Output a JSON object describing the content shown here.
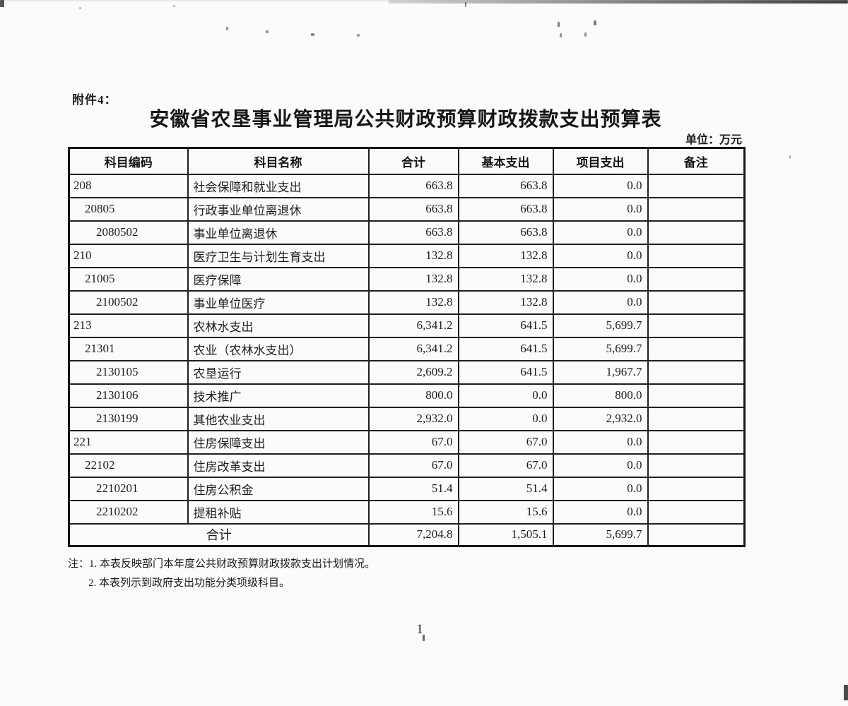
{
  "page": {
    "attachment_label": "附件4：",
    "title": "安徽省农垦事业管理局公共财政预算财政拨款支出预算表",
    "unit_label": "单位：万元",
    "page_number": "1",
    "paper_color": "#fbfbfa",
    "ink_color": "#1d1d1d"
  },
  "table": {
    "columns": [
      "科目编码",
      "科目名称",
      "合计",
      "基本支出",
      "项目支出",
      "备注"
    ],
    "rows": [
      {
        "code": "208",
        "indent": 0,
        "name": "社会保障和就业支出",
        "total": "663.8",
        "basic": "663.8",
        "project": "0.0",
        "remark": ""
      },
      {
        "code": "20805",
        "indent": 1,
        "name": "行政事业单位离退休",
        "total": "663.8",
        "basic": "663.8",
        "project": "0.0",
        "remark": ""
      },
      {
        "code": "2080502",
        "indent": 2,
        "name": "事业单位离退休",
        "total": "663.8",
        "basic": "663.8",
        "project": "0.0",
        "remark": ""
      },
      {
        "code": "210",
        "indent": 0,
        "name": "医疗卫生与计划生育支出",
        "total": "132.8",
        "basic": "132.8",
        "project": "0.0",
        "remark": ""
      },
      {
        "code": "21005",
        "indent": 1,
        "name": "医疗保障",
        "total": "132.8",
        "basic": "132.8",
        "project": "0.0",
        "remark": ""
      },
      {
        "code": "2100502",
        "indent": 2,
        "name": "事业单位医疗",
        "total": "132.8",
        "basic": "132.8",
        "project": "0.0",
        "remark": ""
      },
      {
        "code": "213",
        "indent": 0,
        "name": "农林水支出",
        "total": "6,341.2",
        "basic": "641.5",
        "project": "5,699.7",
        "remark": ""
      },
      {
        "code": "21301",
        "indent": 1,
        "name": "农业（农林水支出）",
        "total": "6,341.2",
        "basic": "641.5",
        "project": "5,699.7",
        "remark": ""
      },
      {
        "code": "2130105",
        "indent": 2,
        "name": "农垦运行",
        "total": "2,609.2",
        "basic": "641.5",
        "project": "1,967.7",
        "remark": ""
      },
      {
        "code": "2130106",
        "indent": 2,
        "name": "技术推广",
        "total": "800.0",
        "basic": "0.0",
        "project": "800.0",
        "remark": ""
      },
      {
        "code": "2130199",
        "indent": 2,
        "name": "其他农业支出",
        "total": "2,932.0",
        "basic": "0.0",
        "project": "2,932.0",
        "remark": ""
      },
      {
        "code": "221",
        "indent": 0,
        "name": "住房保障支出",
        "total": "67.0",
        "basic": "67.0",
        "project": "0.0",
        "remark": ""
      },
      {
        "code": "22102",
        "indent": 1,
        "name": "住房改革支出",
        "total": "67.0",
        "basic": "67.0",
        "project": "0.0",
        "remark": ""
      },
      {
        "code": "2210201",
        "indent": 2,
        "name": "住房公积金",
        "total": "51.4",
        "basic": "51.4",
        "project": "0.0",
        "remark": ""
      },
      {
        "code": "2210202",
        "indent": 2,
        "name": "提租补贴",
        "total": "15.6",
        "basic": "15.6",
        "project": "0.0",
        "remark": ""
      }
    ],
    "total_row": {
      "label": "合计",
      "total": "7,204.8",
      "basic": "1,505.1",
      "project": "5,699.7",
      "remark": ""
    }
  },
  "notes": {
    "line1": "注：1. 本表反映部门本年度公共财政预算财政拨款支出计划情况。",
    "line2": "2. 本表列示到政府支出功能分类项级科目。"
  }
}
